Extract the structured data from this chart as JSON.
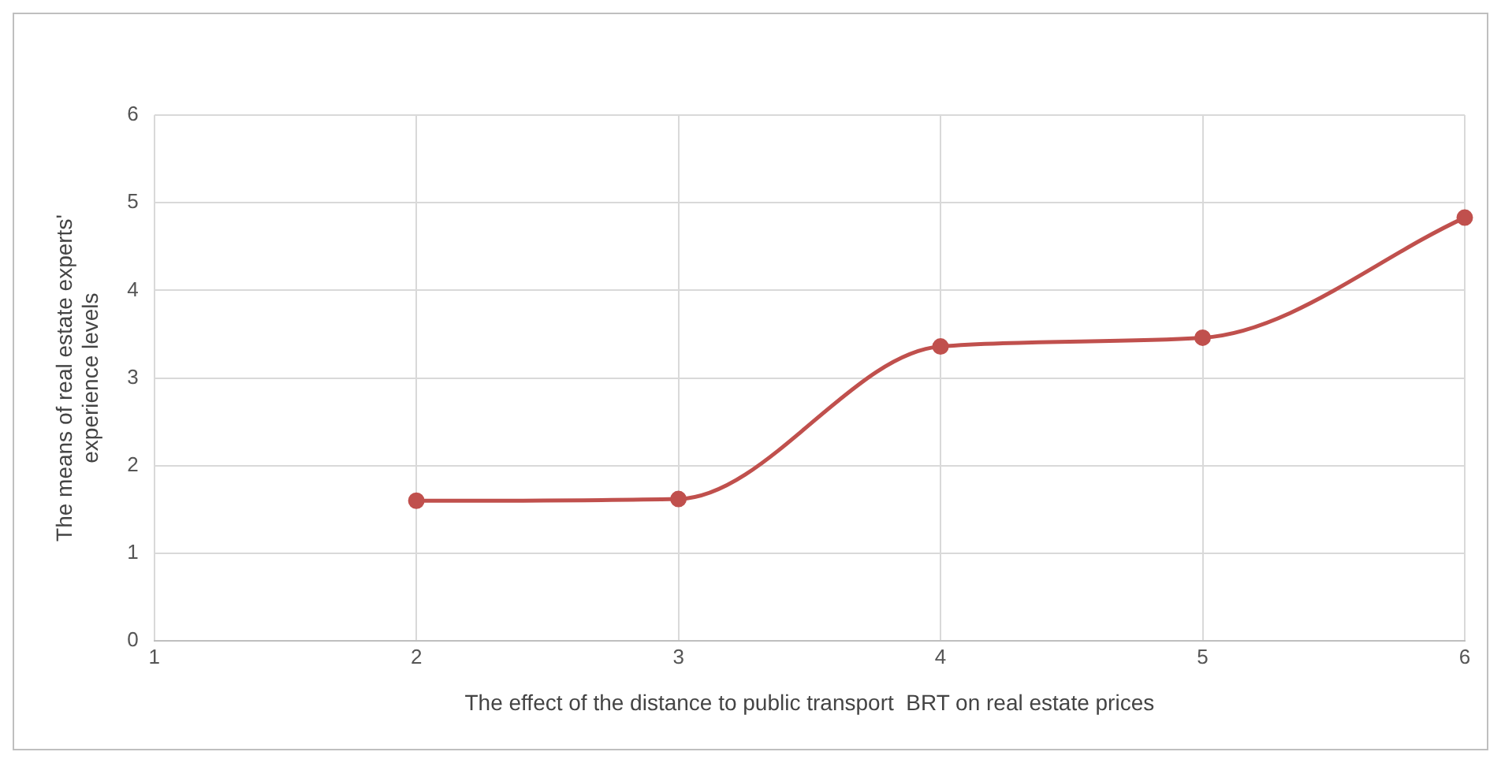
{
  "chart_data": {
    "type": "line",
    "xlabel": "The effect of the distance to public transport  BRT on real estate prices",
    "ylabel": "The means of real estate experts'\nexperience levels",
    "x": [
      2,
      3,
      4,
      5,
      6
    ],
    "series": [
      {
        "color": "#c0504d",
        "values": [
          1.6,
          1.62,
          3.36,
          3.46,
          4.83
        ]
      }
    ],
    "xlim": [
      1,
      6
    ],
    "xticks": [
      1,
      2,
      3,
      4,
      5,
      6
    ],
    "ylim": [
      0,
      6
    ],
    "yticks": [
      0,
      1,
      2,
      3,
      4,
      5,
      6
    ],
    "grid": true,
    "marker": "circle",
    "line_style": "solid"
  }
}
